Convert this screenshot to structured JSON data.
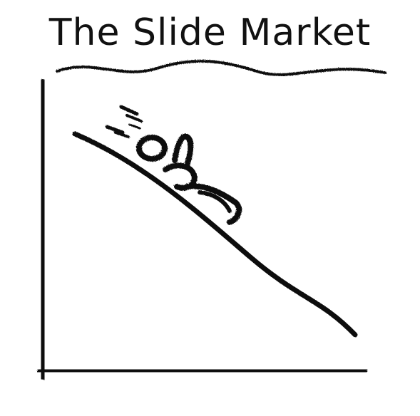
{
  "title": "The Slide Market",
  "colors": {
    "ink": "#111111",
    "background": "#ffffff"
  }
}
